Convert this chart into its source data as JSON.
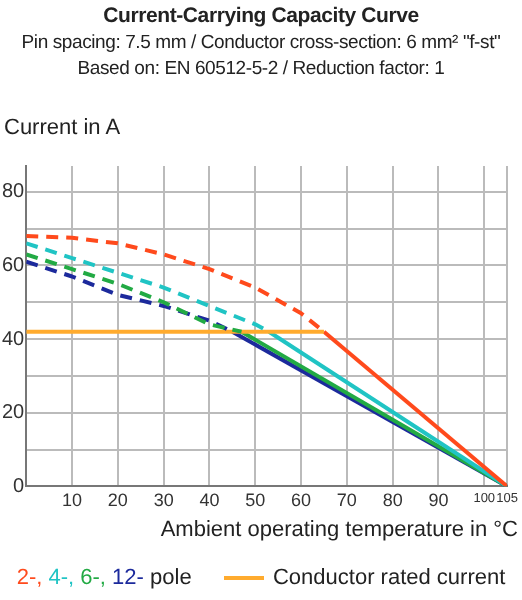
{
  "chart_data": {
    "type": "line",
    "title": "Current-Carrying Capacity Curve",
    "subtitle": "Pin spacing: 7.5 mm / Conductor cross-section: 6 mm² \"f-st\"\nBased on: EN 60512-5-2 / Reduction factor: 1",
    "ylabel": "Current in A",
    "xlabel": "Ambient operating temperature in °C",
    "annotations": [
      "pole"
    ],
    "xlim": [
      0,
      105
    ],
    "xticks": [
      {
        "value": 0,
        "label": null
      },
      10,
      20,
      30,
      40,
      50,
      60,
      70,
      80,
      90,
      100,
      105
    ],
    "ylim": [
      0,
      87
    ],
    "yticks": [
      0,
      {
        "value": 10,
        "label": null
      },
      20,
      {
        "value": 30,
        "label": null
      },
      40,
      {
        "value": 50,
        "label": null
      },
      60,
      {
        "value": 70,
        "label": null
      },
      80
    ],
    "grid": true,
    "legend": "bottom",
    "marker": "none",
    "series": [
      {
        "color": "#ff4a1c",
        "line_style": "dashed",
        "x": [
          0,
          10,
          20,
          30,
          40,
          50,
          60,
          65
        ],
        "values": [
          68,
          67.5,
          66,
          63,
          59,
          54,
          47,
          42
        ]
      },
      {
        "color": "#20c4c4",
        "line_style": "dashed",
        "x": [
          0,
          10,
          20,
          30,
          40,
          50,
          53
        ],
        "values": [
          66,
          62,
          58,
          54,
          49,
          44,
          42
        ]
      },
      {
        "color": "#22aa44",
        "line_style": "dashed",
        "x": [
          0,
          10,
          20,
          30,
          40,
          47
        ],
        "values": [
          63,
          59,
          55,
          50,
          44,
          42
        ]
      },
      {
        "color": "#1c2a9c",
        "line_style": "dashed",
        "x": [
          0,
          10,
          20,
          30,
          40,
          45
        ],
        "values": [
          61,
          57,
          52,
          49,
          45,
          42
        ]
      },
      {
        "name": "Conductor rated current",
        "color": "#ffab2e",
        "line_style": "solid",
        "x": [
          0,
          65
        ],
        "values": [
          42,
          42
        ]
      },
      {
        "name": "2-,",
        "color": "#ff4a1c",
        "line_style": "solid",
        "x": [
          65,
          105
        ],
        "values": [
          42,
          0
        ]
      },
      {
        "name": "4-,",
        "color": "#20c4c4",
        "line_style": "solid",
        "x": [
          53,
          105
        ],
        "values": [
          42,
          0
        ]
      },
      {
        "name": "6-,",
        "color": "#22aa44",
        "line_style": "solid",
        "x": [
          47,
          105
        ],
        "values": [
          42,
          0
        ]
      },
      {
        "name": "12-",
        "color": "#1c2a9c",
        "line_style": "solid",
        "x": [
          45,
          105
        ],
        "values": [
          42,
          0
        ]
      }
    ]
  }
}
